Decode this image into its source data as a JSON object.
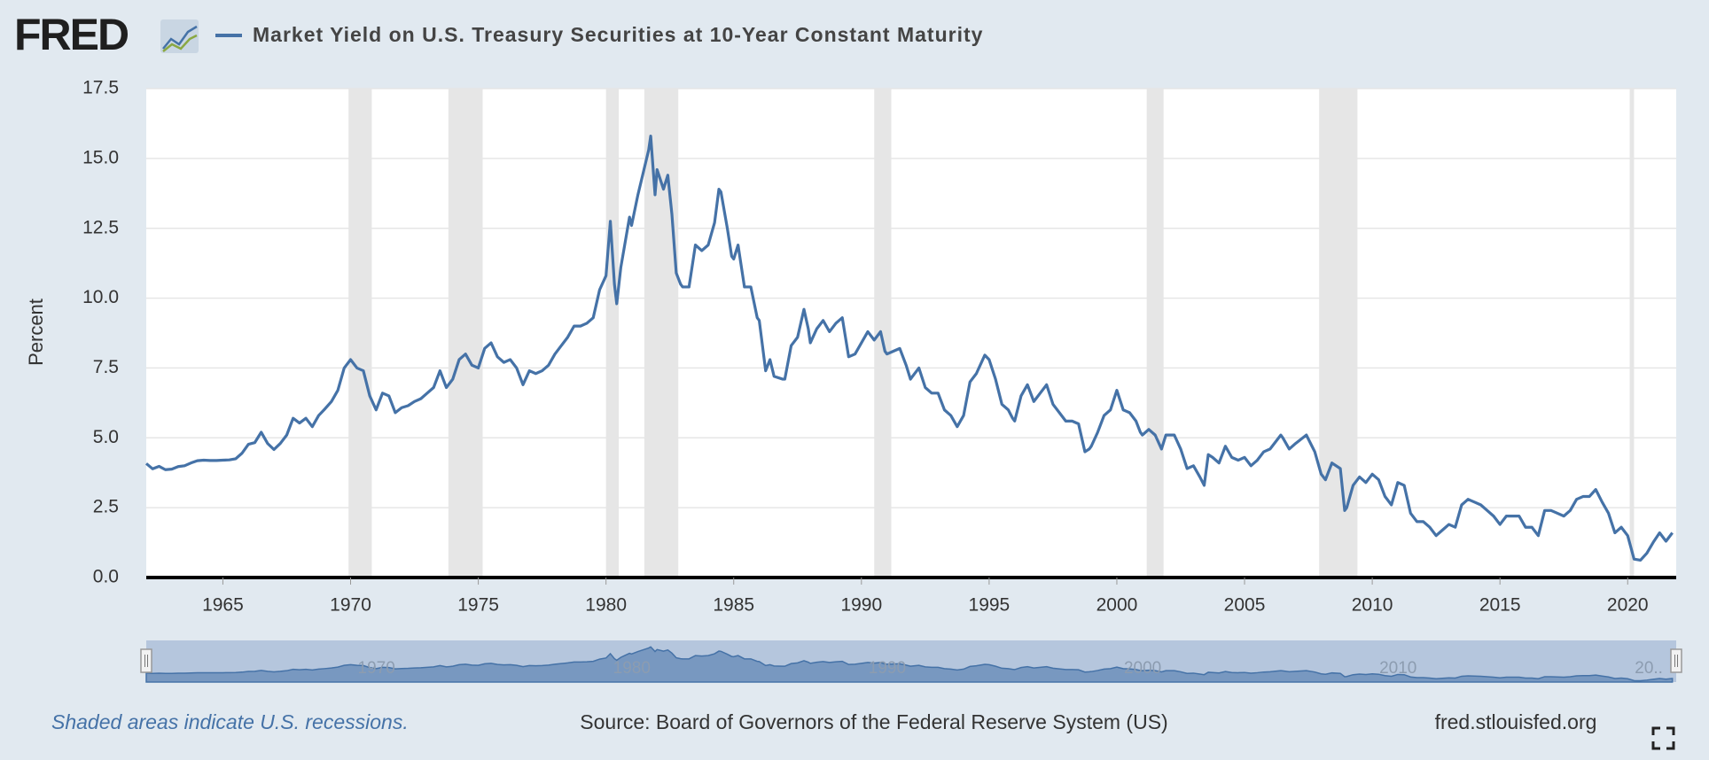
{
  "logo": "FRED",
  "chart_data": {
    "type": "line",
    "y_label": "Percent",
    "xlim": [
      1962,
      2021.9
    ],
    "ylim": [
      0,
      17.5
    ],
    "xticks": [
      1965,
      1970,
      1975,
      1980,
      1985,
      1990,
      1995,
      2000,
      2005,
      2010,
      2015,
      2020
    ],
    "yticks": [
      {
        "value": 0,
        "label": "0.0"
      },
      2.5,
      {
        "value": 5,
        "label": "5.0"
      },
      7.5,
      {
        "value": 10,
        "label": "10.0"
      },
      12.5,
      {
        "value": 15,
        "label": "15.0"
      },
      17.5
    ],
    "grid": true,
    "recessions": [
      [
        1969.92,
        1970.83
      ],
      [
        1973.83,
        1975.17
      ],
      [
        1980.0,
        1980.5
      ],
      [
        1981.5,
        1982.83
      ],
      [
        1990.5,
        1991.17
      ],
      [
        2001.17,
        2001.83
      ],
      [
        2007.92,
        2009.42
      ],
      [
        2020.08,
        2020.25
      ]
    ],
    "recession_color": "#e6e6e6",
    "recession_note": "Shaded areas indicate U.S. recessions.",
    "source": "Source: Board of Governors of the Federal Reserve System (US)",
    "site": "fred.stlouisfed.org",
    "navigator_xticks": [
      1970,
      1980,
      1990,
      2000,
      2010,
      {
        "value": 2020,
        "label": "20.."
      }
    ],
    "x": [
      1962,
      1962.25,
      1962.5,
      1962.75,
      1963,
      1963.25,
      1963.5,
      1963.75,
      1964,
      1964.25,
      1964.5,
      1964.75,
      1965,
      1965.25,
      1965.5,
      1965.75,
      1966,
      1966.25,
      1966.5,
      1966.75,
      1967,
      1967.25,
      1967.5,
      1967.75,
      1968,
      1968.25,
      1968.5,
      1968.75,
      1969,
      1969.25,
      1969.5,
      1969.75,
      1970,
      1970.25,
      1970.5,
      1970.75,
      1971,
      1971.25,
      1971.5,
      1971.75,
      1972,
      1972.25,
      1972.5,
      1972.75,
      1973,
      1973.25,
      1973.5,
      1973.75,
      1974,
      1974.25,
      1974.5,
      1974.75,
      1975,
      1975.25,
      1975.5,
      1975.75,
      1976,
      1976.25,
      1976.5,
      1976.75,
      1977,
      1977.25,
      1977.5,
      1977.75,
      1978,
      1978.25,
      1978.5,
      1978.75,
      1979,
      1979.25,
      1979.5,
      1979.75,
      1980,
      1980.17,
      1980.33,
      1980.42,
      1980.58,
      1980.75,
      1980.92,
      1981,
      1981.25,
      1981.67,
      1981.75,
      1981.92,
      1982,
      1982.25,
      1982.42,
      1982.58,
      1982.75,
      1982.92,
      1983,
      1983.25,
      1983.5,
      1983.75,
      1984,
      1984.25,
      1984.42,
      1984.5,
      1984.75,
      1984.92,
      1985,
      1985.17,
      1985.42,
      1985.67,
      1985.92,
      1986,
      1986.25,
      1986.42,
      1986.58,
      1986.92,
      1987,
      1987.25,
      1987.5,
      1987.75,
      1987.92,
      1988,
      1988.25,
      1988.5,
      1988.75,
      1989,
      1989.25,
      1989.5,
      1989.75,
      1990,
      1990.25,
      1990.5,
      1990.75,
      1990.92,
      1991,
      1991.25,
      1991.5,
      1991.75,
      1991.92,
      1992,
      1992.25,
      1992.5,
      1992.75,
      1993,
      1993.25,
      1993.5,
      1993.75,
      1994,
      1994.25,
      1994.5,
      1994.83,
      1995,
      1995.25,
      1995.5,
      1995.75,
      1995.92,
      1996,
      1996.25,
      1996.5,
      1996.75,
      1997,
      1997.25,
      1997.5,
      1997.75,
      1998,
      1998.25,
      1998.5,
      1998.75,
      1998.92,
      1999,
      1999.25,
      1999.5,
      1999.75,
      2000,
      2000.25,
      2000.5,
      2000.75,
      2000.92,
      2001,
      2001.25,
      2001.5,
      2001.75,
      2001.92,
      2002,
      2002.25,
      2002.5,
      2002.75,
      2003,
      2003.25,
      2003.42,
      2003.58,
      2003.75,
      2004,
      2004.25,
      2004.5,
      2004.75,
      2005,
      2005.25,
      2005.5,
      2005.75,
      2006,
      2006.42,
      2006.5,
      2006.75,
      2007,
      2007.42,
      2007.75,
      2008,
      2008.17,
      2008.42,
      2008.75,
      2008.92,
      2009,
      2009.25,
      2009.5,
      2009.75,
      2010,
      2010.25,
      2010.5,
      2010.75,
      2011,
      2011.25,
      2011.5,
      2011.75,
      2012,
      2012.25,
      2012.5,
      2012.75,
      2013,
      2013.25,
      2013.5,
      2013.75,
      2014,
      2014.25,
      2014.5,
      2014.75,
      2015,
      2015.25,
      2015.5,
      2015.75,
      2016,
      2016.25,
      2016.5,
      2016.75,
      2017,
      2017.25,
      2017.5,
      2017.75,
      2018,
      2018.25,
      2018.5,
      2018.75,
      2019,
      2019.25,
      2019.5,
      2019.75,
      2020,
      2020.25,
      2020.5,
      2020.75,
      2021,
      2021.25,
      2021.5,
      2021.75
    ],
    "series": [
      {
        "name": "Market Yield on U.S. Treasury Securities at 10-Year Constant Maturity",
        "color": "#4572a7",
        "values": [
          4.08,
          3.89,
          3.98,
          3.86,
          3.88,
          3.97,
          4.0,
          4.1,
          4.18,
          4.2,
          4.19,
          4.19,
          4.2,
          4.21,
          4.25,
          4.45,
          4.77,
          4.83,
          5.2,
          4.8,
          4.58,
          4.8,
          5.1,
          5.7,
          5.53,
          5.7,
          5.4,
          5.8,
          6.04,
          6.3,
          6.7,
          7.5,
          7.8,
          7.5,
          7.4,
          6.5,
          6.0,
          6.6,
          6.5,
          5.9,
          6.08,
          6.15,
          6.3,
          6.4,
          6.6,
          6.8,
          7.4,
          6.8,
          7.1,
          7.8,
          8.0,
          7.6,
          7.5,
          8.2,
          8.4,
          7.9,
          7.7,
          7.8,
          7.5,
          6.9,
          7.4,
          7.3,
          7.4,
          7.6,
          8.0,
          8.3,
          8.6,
          9.0,
          9.0,
          9.1,
          9.3,
          10.3,
          10.8,
          12.75,
          10.5,
          9.8,
          11.1,
          12.0,
          12.9,
          12.6,
          13.7,
          15.3,
          15.8,
          13.7,
          14.6,
          13.9,
          14.4,
          13.0,
          10.9,
          10.5,
          10.4,
          10.4,
          11.9,
          11.7,
          11.9,
          12.7,
          13.9,
          13.8,
          12.5,
          11.5,
          11.4,
          11.9,
          10.4,
          10.4,
          9.3,
          9.2,
          7.4,
          7.8,
          7.2,
          7.1,
          7.1,
          8.3,
          8.6,
          9.6,
          8.9,
          8.4,
          8.9,
          9.2,
          8.8,
          9.1,
          9.3,
          7.9,
          8.0,
          8.4,
          8.8,
          8.5,
          8.8,
          8.1,
          8.0,
          8.1,
          8.2,
          7.6,
          7.1,
          7.2,
          7.5,
          6.8,
          6.6,
          6.6,
          6.0,
          5.8,
          5.4,
          5.8,
          7.0,
          7.3,
          7.96,
          7.8,
          7.1,
          6.2,
          6.0,
          5.7,
          5.6,
          6.5,
          6.9,
          6.3,
          6.6,
          6.9,
          6.2,
          5.9,
          5.6,
          5.6,
          5.5,
          4.5,
          4.6,
          4.7,
          5.2,
          5.8,
          6.0,
          6.7,
          6.0,
          5.9,
          5.6,
          5.2,
          5.1,
          5.3,
          5.1,
          4.6,
          5.1,
          5.1,
          5.1,
          4.6,
          3.9,
          4.0,
          3.6,
          3.3,
          4.4,
          4.3,
          4.1,
          4.7,
          4.3,
          4.2,
          4.3,
          4.0,
          4.2,
          4.5,
          4.6,
          5.1,
          5.0,
          4.6,
          4.8,
          5.1,
          4.5,
          3.7,
          3.5,
          4.1,
          3.9,
          2.4,
          2.5,
          3.3,
          3.6,
          3.4,
          3.7,
          3.5,
          2.9,
          2.6,
          3.4,
          3.3,
          2.3,
          2.0,
          2.0,
          1.8,
          1.5,
          1.7,
          1.9,
          1.8,
          2.6,
          2.8,
          2.7,
          2.6,
          2.4,
          2.2,
          1.9,
          2.2,
          2.2,
          2.2,
          1.8,
          1.8,
          1.5,
          2.4,
          2.4,
          2.3,
          2.2,
          2.4,
          2.8,
          2.9,
          2.9,
          3.15,
          2.7,
          2.3,
          1.6,
          1.8,
          1.5,
          0.66,
          0.62,
          0.87,
          1.26,
          1.6,
          1.3,
          1.6
        ]
      }
    ]
  }
}
